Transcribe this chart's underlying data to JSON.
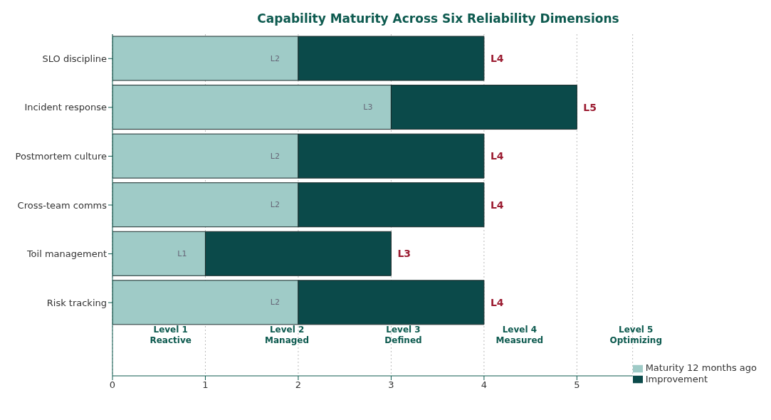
{
  "chart_data": {
    "type": "bar",
    "orientation": "horizontal",
    "stacked": true,
    "title": "Capability Maturity Across Six Reliability Dimensions",
    "categories": [
      "SLO discipline",
      "Incident response",
      "Postmortem culture",
      "Cross-team comms",
      "Toil management",
      "Risk tracking"
    ],
    "series": [
      {
        "name": "Maturity 12 months ago",
        "color": "#9fcbc7",
        "values": [
          2,
          3,
          2,
          2,
          1,
          2
        ],
        "value_labels": [
          "L2",
          "L3",
          "L2",
          "L2",
          "L1",
          "L2"
        ]
      },
      {
        "name": "Improvement",
        "color": "#0b4a4a",
        "values": [
          2,
          2,
          2,
          2,
          2,
          2
        ]
      }
    ],
    "totals": [
      "L4",
      "L5",
      "L4",
      "L4",
      "L3",
      "L4"
    ],
    "xlim": [
      0,
      5.6
    ],
    "xticks": [
      0,
      1,
      2,
      3,
      4,
      5
    ],
    "grid": "x",
    "legend": "bottom right",
    "annotations": [
      "Level 1\nReactive",
      "Level 2\nManaged",
      "Level 3\nDefined",
      "Level 4\nMeasured",
      "Level 5\nOptimizing"
    ]
  }
}
